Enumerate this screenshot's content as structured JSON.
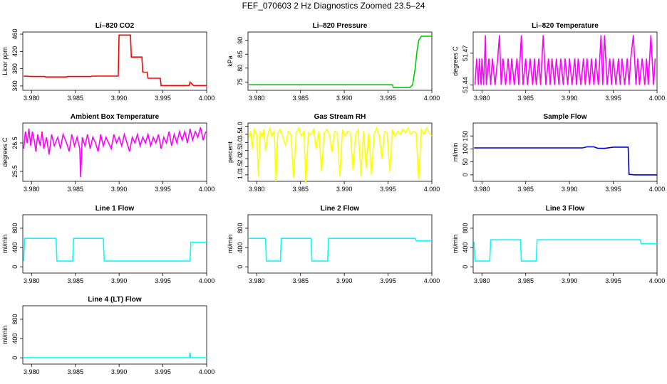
{
  "title": "FEF_070603  2 Hz Diagnostics Zoomed 23.5–24",
  "chart_data": [
    {
      "type": "line",
      "title": "Li–820 CO2",
      "ylabel": "Licor ppm",
      "color": "#ff0000",
      "xlim": [
        3.979,
        4.0
      ],
      "ylim": [
        330,
        465
      ],
      "xticks": [
        "3.980",
        "3.985",
        "3.990",
        "3.995",
        "4.000"
      ],
      "yticks": [
        {
          "v": 340,
          "t": "340"
        },
        {
          "v": 380,
          "t": "380"
        },
        {
          "v": 420,
          "t": "420"
        },
        {
          "v": 460,
          "t": "460"
        }
      ],
      "series": [
        {
          "x": [
            3.9791,
            3.98,
            3.9815,
            3.9816,
            3.984,
            3.9841,
            3.9868,
            3.9869,
            3.9899,
            3.99,
            3.9913,
            3.9914,
            3.9926,
            3.9927,
            3.9932,
            3.9933,
            3.9947,
            3.9948,
            3.9975,
            3.998,
            3.9981,
            3.9985,
            4.0
          ],
          "y": [
            363,
            362,
            362,
            361,
            361,
            362,
            362,
            363,
            363,
            458,
            458,
            407,
            407,
            372,
            372,
            358,
            358,
            341,
            341,
            341,
            349,
            341,
            341
          ]
        }
      ]
    },
    {
      "type": "line",
      "title": "Li–820 Pressure",
      "ylabel": "kPa",
      "color": "#00cc00",
      "xlim": [
        3.979,
        4.0
      ],
      "ylim": [
        72,
        93
      ],
      "xticks": [
        "3.980",
        "3.985",
        "3.990",
        "3.995",
        "4.000"
      ],
      "yticks": [
        {
          "v": 75,
          "t": "75"
        },
        {
          "v": 80,
          "t": "80"
        },
        {
          "v": 85,
          "t": "85"
        },
        {
          "v": 90,
          "t": "90"
        }
      ],
      "series": [
        {
          "x": [
            3.9791,
            3.9955,
            3.9956,
            3.9975,
            3.9978,
            3.9981,
            3.9983,
            3.9985,
            3.9988,
            4.0
          ],
          "y": [
            74,
            74,
            73,
            73,
            74,
            80,
            86,
            90,
            91.5,
            91.5
          ]
        }
      ]
    },
    {
      "type": "line",
      "title": "Li–820 Temperature",
      "ylabel": "degrees C",
      "color": "#ff00ff",
      "xlim": [
        3.979,
        4.0
      ],
      "ylim": [
        51.435,
        51.49
      ],
      "xticks": [
        "3.980",
        "3.985",
        "3.990",
        "3.995",
        "4.000"
      ],
      "yticks": [
        {
          "v": 51.44,
          "t": "51.44"
        },
        {
          "v": 51.47,
          "t": "51.47"
        }
      ],
      "series": [
        {
          "x": [
            3.9792,
            3.9794,
            3.9796,
            3.9797,
            3.9799,
            3.98,
            3.9802,
            3.9804,
            3.9805,
            3.9808,
            3.981,
            3.9812,
            3.9815,
            3.9818,
            3.982,
            3.9822,
            3.9824,
            3.9827,
            3.983,
            3.9832,
            3.9834,
            3.9837,
            3.984,
            3.9842,
            3.9845,
            3.9847,
            3.985,
            3.9852,
            3.9855,
            3.9858,
            3.986,
            3.9862,
            3.9865,
            3.9867,
            3.987,
            3.9873,
            3.9876,
            3.9878,
            3.988,
            3.9883,
            3.9885,
            3.9888,
            3.989,
            3.9893,
            3.9895,
            3.9898,
            3.99,
            3.9903,
            3.9906,
            3.9908,
            3.991,
            3.9913,
            3.9916,
            3.9918,
            3.992,
            3.9923,
            3.9925,
            3.9928,
            3.993,
            3.9933,
            3.9936,
            3.9938,
            3.994,
            3.9943,
            3.9946,
            3.9948,
            3.995,
            3.9953,
            3.9956,
            3.9958,
            3.996,
            3.9963,
            3.9966,
            3.9968,
            3.997,
            3.9973,
            3.9976,
            3.9978,
            3.998,
            3.9983,
            3.9986,
            3.9988,
            3.999,
            3.9993,
            3.9996,
            3.9998
          ],
          "y": [
            51.44,
            51.465,
            51.44,
            51.465,
            51.44,
            51.465,
            51.44,
            51.487,
            51.44,
            51.465,
            51.44,
            51.465,
            51.44,
            51.465,
            51.487,
            51.44,
            51.465,
            51.44,
            51.465,
            51.44,
            51.465,
            51.44,
            51.465,
            51.44,
            51.487,
            51.44,
            51.465,
            51.44,
            51.465,
            51.44,
            51.465,
            51.44,
            51.465,
            51.44,
            51.487,
            51.44,
            51.465,
            51.44,
            51.465,
            51.44,
            51.465,
            51.44,
            51.465,
            51.44,
            51.465,
            51.44,
            51.465,
            51.44,
            51.465,
            51.44,
            51.465,
            51.44,
            51.465,
            51.44,
            51.465,
            51.44,
            51.465,
            51.44,
            51.465,
            51.44,
            51.487,
            51.44,
            51.487,
            51.44,
            51.465,
            51.44,
            51.465,
            51.44,
            51.465,
            51.44,
            51.465,
            51.44,
            51.465,
            51.44,
            51.465,
            51.487,
            51.44,
            51.465,
            51.44,
            51.465,
            51.44,
            51.465,
            51.44,
            51.487,
            51.44,
            51.465
          ]
        }
      ]
    },
    {
      "type": "line",
      "title": "Ambient Box Temperature",
      "ylabel": "degrees C",
      "color": "#ff00ff",
      "xlim": [
        3.979,
        4.0
      ],
      "ylim": [
        25.15,
        27.2
      ],
      "xticks": [
        "3.980",
        "3.985",
        "3.990",
        "3.995",
        "4.000"
      ],
      "yticks": [
        {
          "v": 25.5,
          "t": "25.5"
        },
        {
          "v": 26.5,
          "t": "26.5"
        }
      ],
      "series": [
        {
          "x": [
            3.9791,
            3.9793,
            3.9795,
            3.9797,
            3.9799,
            3.9801,
            3.9803,
            3.9805,
            3.9807,
            3.981,
            3.9812,
            3.9814,
            3.9817,
            3.982,
            3.9823,
            3.9826,
            3.983,
            3.9833,
            3.9836,
            3.984,
            3.9843,
            3.9846,
            3.9849,
            3.9852,
            3.9855,
            3.9856,
            3.9858,
            3.9861,
            3.9864,
            3.9867,
            3.987,
            3.9873,
            3.9876,
            3.9879,
            3.9882,
            3.9885,
            3.9888,
            3.9891,
            3.9894,
            3.9897,
            3.99,
            3.9903,
            3.9906,
            3.9909,
            3.9912,
            3.9915,
            3.9918,
            3.9921,
            3.9924,
            3.9927,
            3.993,
            3.9933,
            3.9936,
            3.9939,
            3.9942,
            3.9945,
            3.9948,
            3.9951,
            3.9954,
            3.9957,
            3.996,
            3.9963,
            3.9966,
            3.9969,
            3.9972,
            3.9975,
            3.9978,
            3.9981,
            3.9984,
            3.9987,
            3.999,
            3.9993,
            3.9996,
            3.9999
          ],
          "y": [
            26.3,
            26.9,
            26.5,
            27.0,
            26.4,
            26.9,
            26.6,
            26.2,
            26.8,
            26.4,
            26.9,
            26.3,
            26.7,
            26.1,
            26.8,
            26.4,
            26.7,
            26.3,
            26.8,
            26.5,
            26.2,
            26.8,
            26.4,
            26.7,
            26.3,
            25.3,
            26.7,
            26.4,
            26.8,
            26.3,
            26.7,
            26.5,
            26.2,
            26.8,
            26.4,
            26.7,
            26.5,
            26.3,
            26.8,
            26.5,
            26.7,
            26.4,
            26.8,
            26.5,
            26.2,
            26.7,
            26.5,
            26.8,
            26.4,
            26.7,
            26.5,
            26.8,
            26.4,
            26.7,
            26.5,
            26.8,
            26.3,
            26.7,
            26.5,
            26.9,
            26.4,
            26.8,
            26.5,
            26.9,
            26.6,
            26.9,
            26.5,
            27.0,
            26.6,
            26.9,
            26.7,
            27.05,
            26.6,
            26.9
          ]
        }
      ]
    },
    {
      "type": "line",
      "title": "Gas Stream RH",
      "ylabel": "percent",
      "color": "#ffff00",
      "xlim": [
        3.979,
        4.0
      ],
      "ylim": [
        0.6,
        4.2
      ],
      "xticks": [
        "3.980",
        "3.985",
        "3.990",
        "3.995",
        "4.000"
      ],
      "yticks": [
        {
          "v": 1.0,
          "t": "1.0"
        },
        {
          "v": 1.5,
          "t": "1.5"
        },
        {
          "v": 2.0,
          "t": "2.0"
        },
        {
          "v": 2.5,
          "t": "2.5"
        },
        {
          "v": 3.0,
          "t": "3.0"
        },
        {
          "v": 3.5,
          "t": "3.5"
        },
        {
          "v": 4.0,
          "t": "4.0"
        }
      ],
      "series": [
        {
          "x": [
            3.9791,
            3.9793,
            3.9795,
            3.9797,
            3.98,
            3.9802,
            3.9804,
            3.9806,
            3.9808,
            3.981,
            3.9813,
            3.9815,
            3.9817,
            3.982,
            3.9822,
            3.9824,
            3.9827,
            3.983,
            3.9833,
            3.9836,
            3.9839,
            3.9842,
            3.9845,
            3.9848,
            3.9851,
            3.9854,
            3.9856,
            3.9859,
            3.9862,
            3.9865,
            3.9868,
            3.9871,
            3.9874,
            3.9877,
            3.988,
            3.9883,
            3.9886,
            3.9889,
            3.9892,
            3.9895,
            3.9898,
            3.9901,
            3.9904,
            3.9907,
            3.991,
            3.9913,
            3.9916,
            3.9919,
            3.9922,
            3.9925,
            3.9928,
            3.9931,
            3.9934,
            3.9937,
            3.994,
            3.9943,
            3.9946,
            3.9949,
            3.9952,
            3.9955,
            3.9958,
            3.9961,
            3.9964,
            3.9967,
            3.997,
            3.9973,
            3.9976,
            3.9979,
            3.9982,
            3.9985,
            3.9988,
            3.9991,
            3.9994,
            3.9997,
            4.0
          ],
          "y": [
            3.3,
            3.7,
            2.6,
            3.8,
            3.5,
            0.9,
            3.7,
            3.3,
            3.8,
            2.5,
            3.6,
            3.9,
            3.4,
            3.7,
            0.6,
            3.6,
            3.8,
            3.3,
            2.8,
            3.7,
            3.5,
            0.8,
            3.6,
            3.9,
            3.4,
            3.7,
            0.5,
            3.6,
            3.5,
            3.8,
            2.6,
            3.7,
            1.2,
            3.6,
            3.8,
            3.5,
            2.4,
            3.7,
            3.6,
            0.9,
            3.8,
            3.4,
            3.7,
            3.6,
            1.3,
            3.5,
            3.8,
            0.9,
            3.7,
            1.4,
            3.6,
            1.0,
            3.5,
            3.9,
            3.4,
            2.0,
            3.7,
            3.6,
            1.2,
            3.8,
            3.4,
            3.7,
            3.5,
            3.8,
            3.6,
            3.9,
            3.5,
            3.7,
            3.6,
            0.7,
            3.8,
            3.5,
            3.9,
            3.6,
            3.4
          ]
        }
      ]
    },
    {
      "type": "line",
      "title": "Sample Flow",
      "ylabel": "ml/min",
      "color": "#0000cc",
      "xlim": [
        3.979,
        4.0
      ],
      "ylim": [
        -25,
        200
      ],
      "xticks": [
        "3.980",
        "3.985",
        "3.990",
        "3.995",
        "4.000"
      ],
      "yticks": [
        {
          "v": 0,
          "t": "0"
        },
        {
          "v": 50,
          "t": "50"
        },
        {
          "v": 100,
          "t": "100"
        },
        {
          "v": 150,
          "t": "150"
        }
      ],
      "series": [
        {
          "x": [
            3.9791,
            3.9805,
            3.982,
            3.984,
            3.986,
            3.988,
            3.99,
            3.9915,
            3.992,
            3.9928,
            3.9932,
            3.994,
            3.995,
            3.9967,
            3.9968,
            3.9975,
            3.999,
            4.0
          ],
          "y": [
            104,
            104,
            104,
            104,
            104,
            104,
            104,
            104,
            108,
            108,
            103,
            102,
            107,
            107,
            2,
            0,
            0,
            0
          ]
        }
      ]
    },
    {
      "type": "line",
      "title": "Line 1 Flow",
      "ylabel": "ml/min",
      "color": "#00ffff",
      "xlim": [
        3.979,
        4.0
      ],
      "ylim": [
        -130,
        1080
      ],
      "xticks": [
        "3.980",
        "3.985",
        "3.990",
        "3.995",
        "4.000"
      ],
      "yticks": [
        {
          "v": 0,
          "t": "0"
        },
        {
          "v": 400,
          "t": "400"
        },
        {
          "v": 800,
          "t": "800"
        }
      ],
      "series": [
        {
          "x": [
            3.9791,
            3.9792,
            3.9828,
            3.9829,
            3.9847,
            3.9848,
            3.9882,
            3.9883,
            3.9981,
            3.9982,
            4.0
          ],
          "y": [
            120,
            590,
            590,
            120,
            120,
            590,
            590,
            120,
            120,
            510,
            510
          ]
        }
      ]
    },
    {
      "type": "line",
      "title": "Line 2 Flow",
      "ylabel": "ml/min",
      "color": "#00ffff",
      "xlim": [
        3.979,
        4.0
      ],
      "ylim": [
        -130,
        1080
      ],
      "xticks": [
        "3.980",
        "3.985",
        "3.990",
        "3.995",
        "4.000"
      ],
      "yticks": [
        {
          "v": 0,
          "t": "0"
        },
        {
          "v": 400,
          "t": "400"
        },
        {
          "v": 800,
          "t": "800"
        }
      ],
      "series": [
        {
          "x": [
            3.9791,
            3.981,
            3.9811,
            3.9827,
            3.9828,
            3.9862,
            3.9863,
            3.9881,
            3.9882,
            3.9981,
            3.9982,
            4.0
          ],
          "y": [
            590,
            590,
            120,
            120,
            590,
            590,
            120,
            120,
            590,
            590,
            540,
            540
          ]
        }
      ]
    },
    {
      "type": "line",
      "title": "Line 3 Flow",
      "ylabel": "ml/min",
      "color": "#00ffff",
      "xlim": [
        3.979,
        4.0
      ],
      "ylim": [
        -130,
        1080
      ],
      "xticks": [
        "3.980",
        "3.985",
        "3.990",
        "3.995",
        "4.000"
      ],
      "yticks": [
        {
          "v": 0,
          "t": "0"
        },
        {
          "v": 400,
          "t": "400"
        },
        {
          "v": 800,
          "t": "800"
        }
      ],
      "series": [
        {
          "x": [
            3.9791,
            3.9792,
            3.9809,
            3.981,
            3.9844,
            3.9845,
            3.9862,
            3.9863,
            3.9981,
            3.9982,
            4.0
          ],
          "y": [
            520,
            120,
            120,
            560,
            560,
            120,
            120,
            560,
            560,
            480,
            480
          ]
        }
      ]
    },
    {
      "type": "line",
      "title": "Line 4 (LT) Flow",
      "ylabel": "ml/min",
      "color": "#00ffff",
      "xlim": [
        3.979,
        4.0
      ],
      "ylim": [
        -130,
        1080
      ],
      "xticks": [
        "3.980",
        "3.985",
        "3.990",
        "3.995",
        "4.000"
      ],
      "yticks": [
        {
          "v": 0,
          "t": "0"
        },
        {
          "v": 400,
          "t": "400"
        },
        {
          "v": 800,
          "t": "800"
        }
      ],
      "series": [
        {
          "x": [
            3.9791,
            3.998,
            3.9981,
            3.9982,
            3.9983,
            4.0
          ],
          "y": [
            5,
            5,
            110,
            5,
            5,
            5
          ]
        }
      ]
    }
  ]
}
